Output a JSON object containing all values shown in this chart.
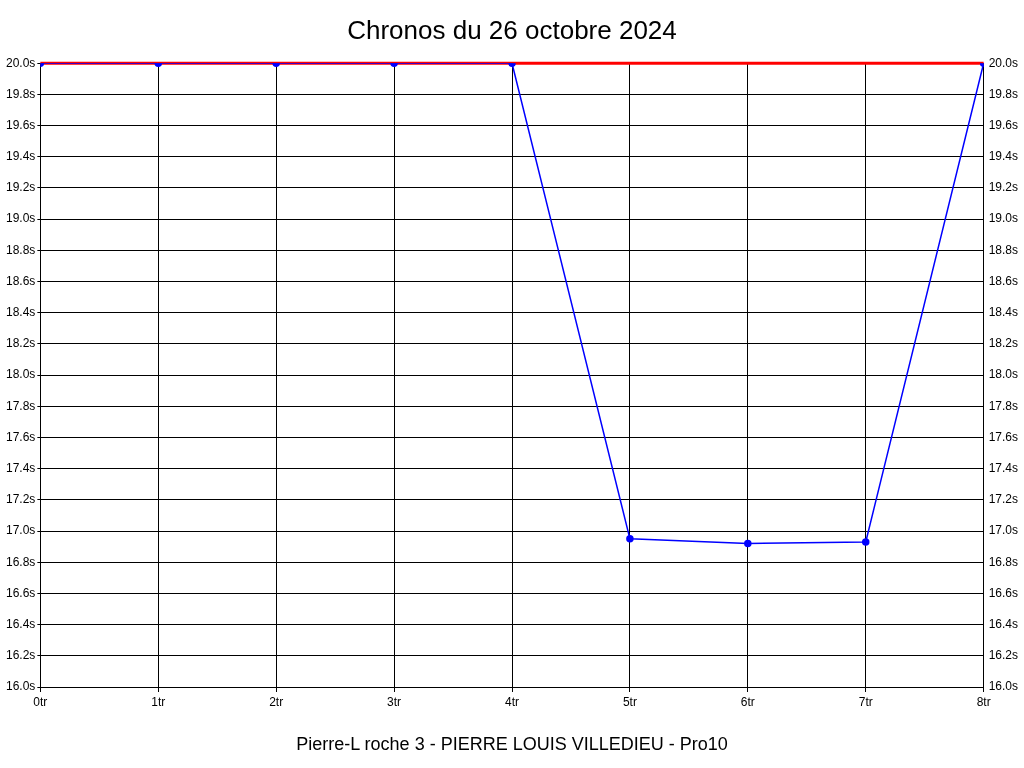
{
  "chart_data": {
    "type": "line",
    "title": "Chronos du 26 octobre 2024",
    "xlabel": "Pierre-L roche 3 - PIERRE LOUIS VILLEDIEU - Pro10",
    "x": [
      0,
      1,
      2,
      3,
      4,
      5,
      6,
      7,
      8
    ],
    "series": [
      {
        "color": "#0000ff",
        "values": [
          20.0,
          20.0,
          20.0,
          20.0,
          20.0,
          16.95,
          16.92,
          16.93,
          20.0
        ]
      }
    ],
    "xlim": [
      0,
      8
    ],
    "xticks": [
      {
        "value": 0,
        "label": "0tr"
      },
      {
        "value": 1,
        "label": "1tr"
      },
      {
        "value": 2,
        "label": "2tr"
      },
      {
        "value": 3,
        "label": "3tr"
      },
      {
        "value": 4,
        "label": "4tr"
      },
      {
        "value": 5,
        "label": "5tr"
      },
      {
        "value": 6,
        "label": "6tr"
      },
      {
        "value": 7,
        "label": "7tr"
      },
      {
        "value": 8,
        "label": "8tr"
      }
    ],
    "ylim": [
      16.0,
      20.0
    ],
    "yticks": [
      {
        "value": 16.0,
        "label": "16.0s"
      },
      {
        "value": 16.2,
        "label": "16.2s"
      },
      {
        "value": 16.4,
        "label": "16.4s"
      },
      {
        "value": 16.6,
        "label": "16.6s"
      },
      {
        "value": 16.8,
        "label": "16.8s"
      },
      {
        "value": 17.0,
        "label": "17.0s"
      },
      {
        "value": 17.2,
        "label": "17.2s"
      },
      {
        "value": 17.4,
        "label": "17.4s"
      },
      {
        "value": 17.6,
        "label": "17.6s"
      },
      {
        "value": 17.8,
        "label": "17.8s"
      },
      {
        "value": 18.0,
        "label": "18.0s"
      },
      {
        "value": 18.2,
        "label": "18.2s"
      },
      {
        "value": 18.4,
        "label": "18.4s"
      },
      {
        "value": 18.6,
        "label": "18.6s"
      },
      {
        "value": 18.8,
        "label": "18.8s"
      },
      {
        "value": 19.0,
        "label": "19.0s"
      },
      {
        "value": 19.2,
        "label": "19.2s"
      },
      {
        "value": 19.4,
        "label": "19.4s"
      },
      {
        "value": 19.6,
        "label": "19.6s"
      },
      {
        "value": 19.8,
        "label": "19.8s"
      },
      {
        "value": 20.0,
        "label": "20.0s"
      }
    ],
    "y2lim": [
      16.0,
      20.0
    ],
    "y2ticks": [
      {
        "value": 16.0,
        "label": "16.0s"
      },
      {
        "value": 16.2,
        "label": "16.2s"
      },
      {
        "value": 16.4,
        "label": "16.4s"
      },
      {
        "value": 16.6,
        "label": "16.6s"
      },
      {
        "value": 16.8,
        "label": "16.8s"
      },
      {
        "value": 17.0,
        "label": "17.0s"
      },
      {
        "value": 17.2,
        "label": "17.2s"
      },
      {
        "value": 17.4,
        "label": "17.4s"
      },
      {
        "value": 17.6,
        "label": "17.6s"
      },
      {
        "value": 17.8,
        "label": "17.8s"
      },
      {
        "value": 18.0,
        "label": "18.0s"
      },
      {
        "value": 18.2,
        "label": "18.2s"
      },
      {
        "value": 18.4,
        "label": "18.4s"
      },
      {
        "value": 18.6,
        "label": "18.6s"
      },
      {
        "value": 18.8,
        "label": "18.8s"
      },
      {
        "value": 19.0,
        "label": "19.0s"
      },
      {
        "value": 19.2,
        "label": "19.2s"
      },
      {
        "value": 19.4,
        "label": "19.4s"
      },
      {
        "value": 19.6,
        "label": "19.6s"
      },
      {
        "value": 19.8,
        "label": "19.8s"
      },
      {
        "value": 20.0,
        "label": "20.0s"
      }
    ],
    "ref_lines": [
      {
        "axis": "y",
        "value": 20.0,
        "color": "#ff0000",
        "line_style": "solid"
      }
    ],
    "grid": true,
    "legend": false,
    "marker": "circle",
    "line_style": "solid"
  }
}
